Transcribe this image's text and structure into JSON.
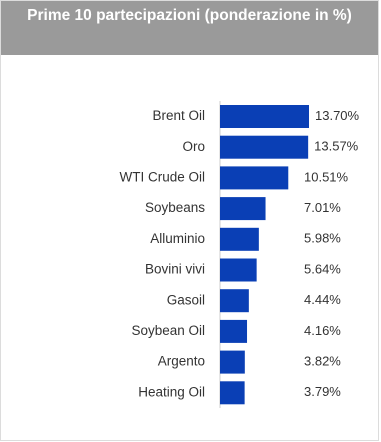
{
  "chart_data": {
    "type": "bar",
    "orientation": "horizontal",
    "title": "Prime 10 partecipazioni (ponderazione in %)",
    "categories": [
      "Brent Oil",
      "Oro",
      "WTI Crude Oil",
      "Soybeans",
      "Alluminio",
      "Bovini vivi",
      "Gasoil",
      "Soybean Oil",
      "Argento",
      "Heating Oil"
    ],
    "values": [
      13.7,
      13.57,
      10.51,
      7.01,
      5.98,
      5.64,
      4.44,
      4.16,
      3.82,
      3.79
    ],
    "value_labels": [
      "13.70%",
      "13.57%",
      "10.51%",
      "7.01%",
      "5.98%",
      "5.64%",
      "4.44%",
      "4.16%",
      "3.82%",
      "3.79%"
    ],
    "bar_color": "#0a3fb5",
    "header_color": "#9a9a9a",
    "xlim": [
      0,
      13.7
    ],
    "grid": false,
    "legend": "none"
  }
}
